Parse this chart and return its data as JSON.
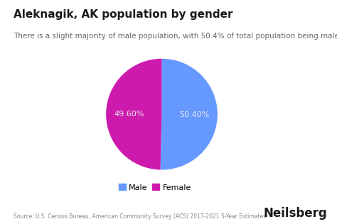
{
  "title": "Aleknagik, AK population by gender",
  "subtitle": "There is a slight majority of male population, with 50.4% of total population being male",
  "slices": [
    50.4,
    49.6
  ],
  "labels": [
    "50.40%",
    "49.60%"
  ],
  "legend_labels": [
    "Male",
    "Female"
  ],
  "colors": [
    "#6699ff",
    "#cc1aad"
  ],
  "text_color": "#e8e8f0",
  "background_color": "#ffffff",
  "source_text": "Source: U.S. Census Bureau, American Community Survey (ACS) 2017-2021 5-Year Estimates",
  "brand_text": "Neilsberg",
  "title_fontsize": 11,
  "subtitle_fontsize": 7.5,
  "label_fontsize": 8,
  "legend_fontsize": 8,
  "source_fontsize": 5.5,
  "brand_fontsize": 12,
  "startangle": 90
}
